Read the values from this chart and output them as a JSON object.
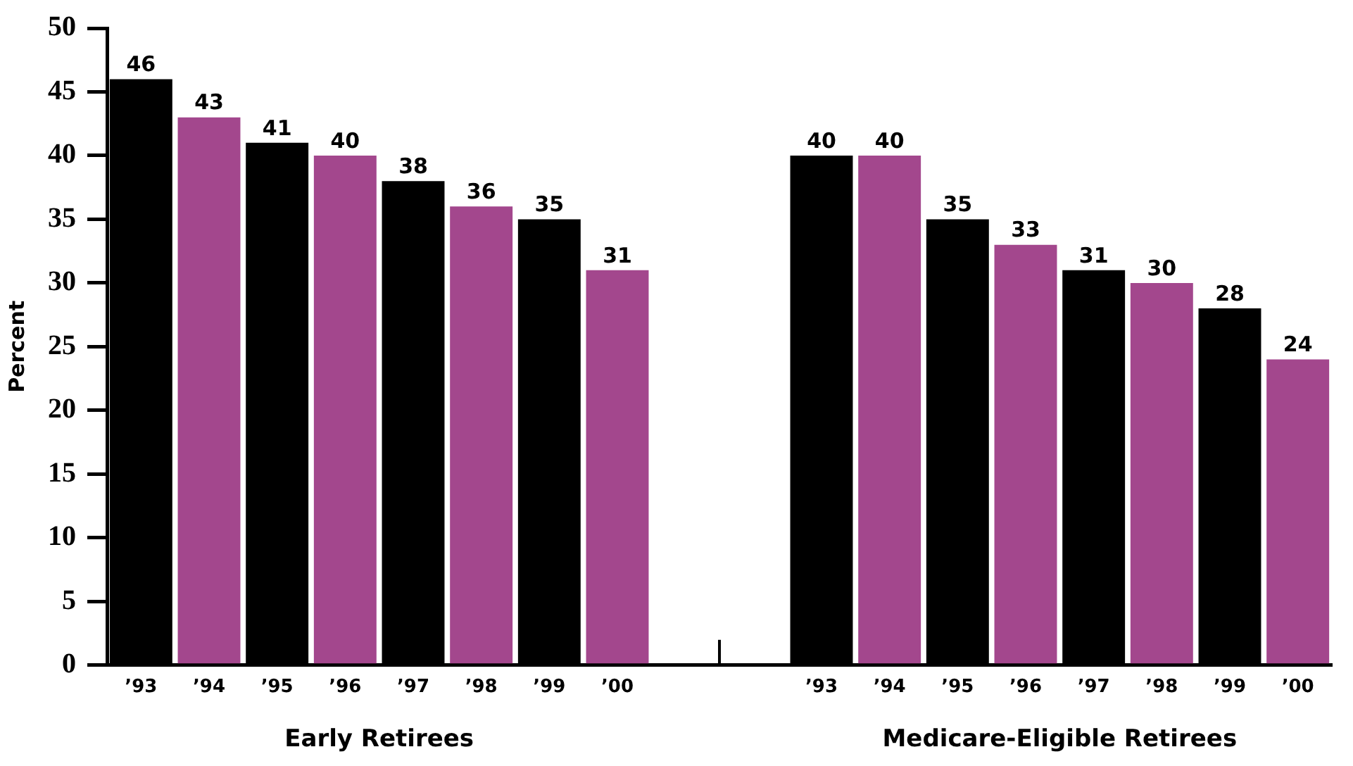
{
  "chart_data": {
    "type": "bar",
    "ylabel": "Percent",
    "categories": [
      "’93",
      "’94",
      "’95",
      "’96",
      "’97",
      "’98",
      "’99",
      "’00",
      null,
      null,
      "’93",
      "’94",
      "’95",
      "’96",
      "’97",
      "’98",
      "’99",
      "’00"
    ],
    "values": [
      46,
      43,
      41,
      40,
      38,
      36,
      35,
      31,
      null,
      null,
      40,
      40,
      35,
      33,
      31,
      30,
      28,
      24
    ],
    "colors": [
      "#000000",
      "#a3478d",
      "#000000",
      "#a3478d",
      "#000000",
      "#a3478d",
      "#000000",
      "#a3478d",
      "#000000",
      "#a3478d",
      "#000000",
      "#a3478d",
      "#000000",
      "#a3478d",
      "#000000",
      "#a3478d",
      "#000000",
      "#a3478d"
    ],
    "ylim": [
      0,
      50
    ],
    "yticks": [
      0,
      5,
      10,
      15,
      20,
      25,
      30,
      35,
      40,
      45,
      50
    ],
    "data_labels": true,
    "grid": false,
    "legend": false,
    "annotations": [
      "Early Retirees",
      "Medicare-Eligible Retirees"
    ]
  }
}
